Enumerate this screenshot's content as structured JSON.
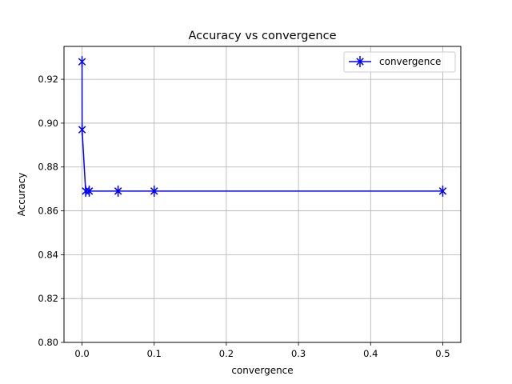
{
  "chart_data": {
    "type": "line",
    "title": "Accuracy vs convergence",
    "xlabel": "convergence",
    "ylabel": "Accuracy",
    "xlim": [
      -0.025,
      0.525
    ],
    "ylim": [
      0.8,
      0.935
    ],
    "xticks": [
      0.0,
      0.1,
      0.2,
      0.3,
      0.4,
      0.5
    ],
    "xtick_labels": [
      "0.0",
      "0.1",
      "0.2",
      "0.3",
      "0.4",
      "0.5"
    ],
    "yticks": [
      0.8,
      0.82,
      0.84,
      0.86,
      0.88,
      0.9,
      0.92
    ],
    "ytick_labels": [
      "0.80",
      "0.82",
      "0.84",
      "0.86",
      "0.88",
      "0.90",
      "0.92"
    ],
    "grid": true,
    "legend_position": "top-right",
    "series": [
      {
        "name": "convergence",
        "color": "#0000ff",
        "marker": "x-with-vertical-bar",
        "points": [
          {
            "x": 0.0,
            "y": 0.928
          },
          {
            "x": 0.0001,
            "y": 0.897
          },
          {
            "x": 0.005,
            "y": 0.869
          },
          {
            "x": 0.01,
            "y": 0.869
          },
          {
            "x": 0.05,
            "y": 0.869
          },
          {
            "x": 0.1,
            "y": 0.869
          },
          {
            "x": 0.5,
            "y": 0.869
          }
        ]
      }
    ]
  }
}
